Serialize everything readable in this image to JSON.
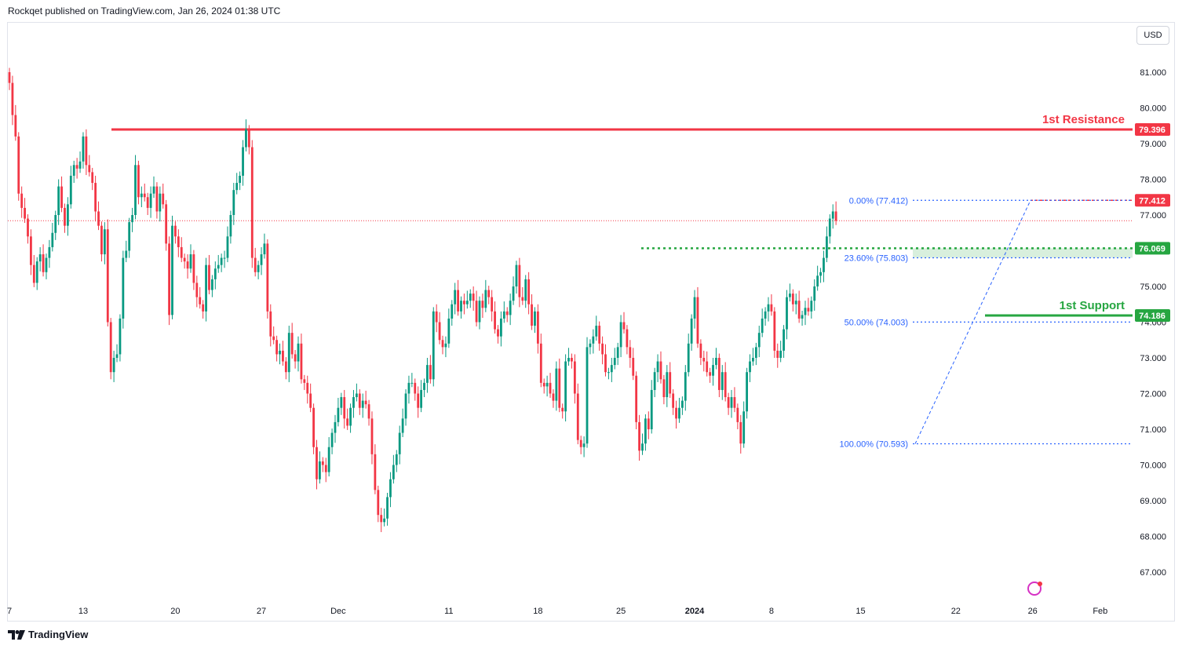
{
  "header": {
    "text": "Rockqet published on TradingView.com, Jan 26, 2024 01:38 UTC"
  },
  "currency": "USD",
  "footer": {
    "brand": "TradingView"
  },
  "colors": {
    "up": "#089981",
    "down": "#f23645",
    "resistance": "#f23645",
    "support": "#26a641",
    "fib": "#2962ff",
    "fib_text": "#2962ff"
  },
  "chart_data": {
    "type": "candlestick",
    "y_ticks": [
      "81.000",
      "80.000",
      "79.000",
      "78.000",
      "77.000",
      "76.000",
      "75.000",
      "74.000",
      "73.000",
      "72.000",
      "71.000",
      "70.000",
      "69.000",
      "68.000",
      "67.000"
    ],
    "ylim": [
      66.5,
      82.2
    ],
    "x_ticks": [
      {
        "label": "7",
        "bar": 0
      },
      {
        "label": "13",
        "bar": 24
      },
      {
        "label": "20",
        "bar": 54
      },
      {
        "label": "27",
        "bar": 82
      },
      {
        "label": "Dec",
        "bar": 107,
        "bold": false
      },
      {
        "label": "11",
        "bar": 143
      },
      {
        "label": "18",
        "bar": 172
      },
      {
        "label": "25",
        "bar": 199
      },
      {
        "label": "2024",
        "bar": 223,
        "bold": true
      },
      {
        "label": "8",
        "bar": 248
      },
      {
        "label": "15",
        "bar": 277
      },
      {
        "label": "22",
        "bar": 308
      },
      {
        "label": "26",
        "bar": 333
      },
      {
        "label": "Feb",
        "bar": 355
      }
    ],
    "levels": {
      "resistance": {
        "label": "1st Resistance",
        "value": 79.396,
        "price_label": "79.396"
      },
      "support": {
        "label": "1st Support",
        "value": 74.186,
        "price_label": "74.186"
      },
      "swing_high_level": {
        "value": 76.069,
        "price_label": "76.069"
      },
      "high_marker": {
        "value": 77.412,
        "price_label": "77.412"
      },
      "last_price_line": 76.84
    },
    "fib": [
      {
        "label": "0.00% (77.412)",
        "value": 77.412
      },
      {
        "label": "23.60% (75.803)",
        "value": 75.803
      },
      {
        "label": "50.00% (74.003)",
        "value": 74.003
      },
      {
        "label": "100.00% (70.593)",
        "value": 70.593
      }
    ],
    "closes": [
      80.7,
      79.8,
      79.2,
      77.6,
      77.2,
      76.9,
      76.4,
      75.6,
      75.1,
      75.7,
      75.9,
      75.4,
      75.8,
      76.1,
      76.5,
      77.0,
      77.8,
      77.2,
      76.7,
      77.3,
      78.1,
      78.4,
      78.3,
      78.5,
      79.2,
      78.4,
      78.2,
      77.9,
      77.1,
      76.7,
      75.9,
      76.6,
      74.0,
      72.6,
      73.0,
      73.1,
      74.1,
      75.8,
      76.0,
      76.8,
      77.0,
      78.4,
      77.5,
      77.6,
      77.5,
      77.2,
      77.6,
      77.8,
      77.1,
      77.6,
      77.3,
      76.2,
      74.2,
      76.7,
      76.4,
      76.1,
      75.8,
      75.7,
      75.5,
      75.9,
      75.1,
      74.7,
      74.5,
      74.3,
      75.6,
      74.9,
      75.2,
      75.5,
      75.6,
      75.8,
      75.8,
      76.4,
      77.0,
      77.7,
      77.9,
      78.1,
      78.9,
      79.4,
      78.9,
      75.8,
      75.4,
      75.6,
      75.9,
      76.2,
      74.3,
      73.6,
      73.5,
      73.1,
      73.2,
      72.9,
      72.6,
      73.7,
      73.1,
      72.9,
      73.4,
      72.4,
      72.3,
      72.0,
      71.6,
      70.5,
      69.6,
      70.1,
      70.0,
      69.8,
      70.5,
      70.9,
      71.2,
      71.6,
      71.9,
      71.3,
      71.1,
      71.6,
      71.9,
      72.0,
      71.6,
      71.8,
      71.7,
      71.3,
      70.3,
      69.3,
      68.6,
      68.4,
      68.5,
      69.1,
      69.6,
      70.0,
      70.3,
      70.9,
      71.3,
      72.0,
      72.3,
      72.3,
      72.0,
      71.6,
      72.1,
      72.3,
      72.8,
      72.4,
      74.3,
      74.0,
      73.5,
      73.3,
      73.4,
      74.1,
      74.5,
      74.9,
      74.3,
      74.6,
      74.5,
      74.6,
      74.8,
      74.6,
      74.0,
      74.6,
      74.4,
      74.9,
      74.7,
      74.3,
      73.8,
      73.6,
      74.1,
      74.3,
      74.2,
      74.6,
      75.0,
      75.6,
      74.7,
      74.6,
      75.2,
      74.5,
      73.9,
      74.3,
      73.4,
      72.3,
      72.2,
      72.3,
      72.0,
      71.8,
      72.7,
      71.6,
      71.5,
      72.9,
      73.0,
      72.9,
      72.0,
      70.7,
      70.5,
      70.6,
      73.3,
      73.4,
      73.6,
      73.9,
      73.4,
      73.1,
      72.6,
      72.6,
      72.8,
      73.0,
      73.3,
      74.0,
      73.8,
      73.3,
      73.0,
      72.5,
      71.2,
      70.4,
      70.6,
      71.3,
      71.0,
      72.1,
      72.6,
      72.9,
      72.4,
      71.9,
      72.6,
      72.0,
      71.6,
      71.3,
      71.6,
      71.8,
      72.6,
      73.4,
      74.1,
      74.7,
      73.4,
      73.0,
      72.9,
      72.6,
      72.5,
      72.8,
      73.0,
      72.1,
      72.6,
      71.9,
      71.6,
      71.9,
      71.6,
      71.2,
      70.6,
      71.5,
      72.6,
      72.9,
      73.0,
      73.3,
      73.7,
      74.1,
      74.3,
      74.5,
      74.3,
      73.2,
      73.0,
      73.2,
      73.8,
      74.7,
      74.8,
      74.5,
      74.6,
      74.1,
      74.2,
      74.4,
      74.3,
      74.6,
      75.0,
      75.3,
      75.4,
      75.8,
      76.4,
      76.9,
      77.1,
      76.84
    ]
  }
}
